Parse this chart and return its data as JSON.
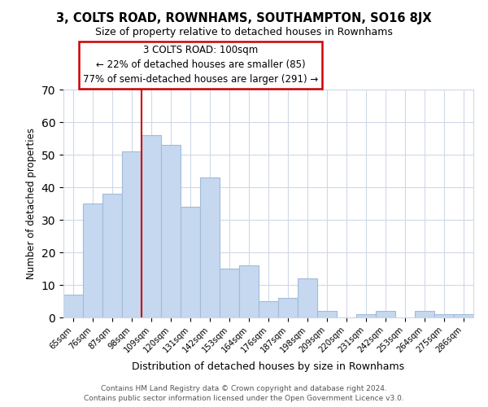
{
  "title": "3, COLTS ROAD, ROWNHAMS, SOUTHAMPTON, SO16 8JX",
  "subtitle": "Size of property relative to detached houses in Rownhams",
  "xlabel": "Distribution of detached houses by size in Rownhams",
  "ylabel": "Number of detached properties",
  "bar_labels": [
    "65sqm",
    "76sqm",
    "87sqm",
    "98sqm",
    "109sqm",
    "120sqm",
    "131sqm",
    "142sqm",
    "153sqm",
    "164sqm",
    "176sqm",
    "187sqm",
    "198sqm",
    "209sqm",
    "220sqm",
    "231sqm",
    "242sqm",
    "253sqm",
    "264sqm",
    "275sqm",
    "286sqm"
  ],
  "bar_values": [
    7,
    35,
    38,
    51,
    56,
    53,
    34,
    43,
    15,
    16,
    5,
    6,
    12,
    2,
    0,
    1,
    2,
    0,
    2,
    1,
    1
  ],
  "bar_color": "#c5d8f0",
  "bar_edgecolor": "#a0bcd8",
  "vline_x": 3.5,
  "vline_color": "#cc0000",
  "ylim": [
    0,
    70
  ],
  "yticks": [
    0,
    10,
    20,
    30,
    40,
    50,
    60,
    70
  ],
  "annotation_title": "3 COLTS ROAD: 100sqm",
  "annotation_line1": "← 22% of detached houses are smaller (85)",
  "annotation_line2": "77% of semi-detached houses are larger (291) →",
  "annotation_box_color": "#ffffff",
  "annotation_box_edgecolor": "#cc0000",
  "footer_line1": "Contains HM Land Registry data © Crown copyright and database right 2024.",
  "footer_line2": "Contains public sector information licensed under the Open Government Licence v3.0.",
  "background_color": "#ffffff",
  "grid_color": "#d0d8e8"
}
